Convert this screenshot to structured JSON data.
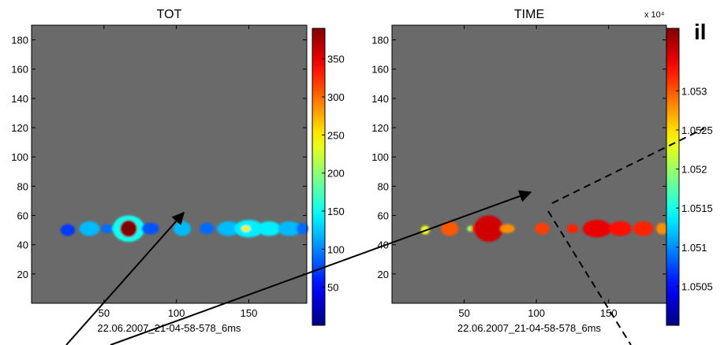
{
  "chart_data": [
    {
      "type": "heatmap",
      "title": "TOT",
      "xlabel": "22.06.2007_21-04-58-578_6ms",
      "xlim": [
        0,
        190
      ],
      "ylim": [
        0,
        190
      ],
      "xticks": [
        50,
        100,
        150
      ],
      "yticks": [
        20,
        40,
        60,
        80,
        100,
        120,
        140,
        160,
        180
      ],
      "background": "#6a6a6a",
      "colorbar": {
        "range": [
          0,
          390
        ],
        "ticks": [
          50,
          100,
          150,
          200,
          250,
          300,
          350
        ],
        "multiplier_label": ""
      },
      "blobs": [
        {
          "x": 25,
          "y": 50,
          "rx": 5,
          "ry": 4,
          "value": 70
        },
        {
          "x": 40,
          "y": 51,
          "rx": 7,
          "ry": 5,
          "value": 120
        },
        {
          "x": 52,
          "y": 51,
          "rx": 4,
          "ry": 3,
          "value": 90
        },
        {
          "x": 59,
          "y": 51,
          "rx": 4,
          "ry": 3,
          "value": 110
        },
        {
          "x": 67,
          "y": 51,
          "rx": 11,
          "ry": 9,
          "value": 150
        },
        {
          "x": 67,
          "y": 51,
          "rx": 6,
          "ry": 6,
          "value": 390
        },
        {
          "x": 82,
          "y": 51,
          "rx": 6,
          "ry": 4,
          "value": 80
        },
        {
          "x": 104,
          "y": 51,
          "rx": 6,
          "ry": 5,
          "value": 120
        },
        {
          "x": 121,
          "y": 51,
          "rx": 5,
          "ry": 4,
          "value": 90
        },
        {
          "x": 136,
          "y": 51,
          "rx": 8,
          "ry": 5,
          "value": 120
        },
        {
          "x": 150,
          "y": 51,
          "rx": 10,
          "ry": 6,
          "value": 140
        },
        {
          "x": 164,
          "y": 51,
          "rx": 8,
          "ry": 5,
          "value": 140
        },
        {
          "x": 178,
          "y": 51,
          "rx": 8,
          "ry": 5,
          "value": 120
        },
        {
          "x": 187,
          "y": 51,
          "rx": 4,
          "ry": 4,
          "value": 90
        },
        {
          "x": 148,
          "y": 51,
          "rx": 3,
          "ry": 2,
          "value": 250
        }
      ]
    },
    {
      "type": "heatmap",
      "title": "TIME",
      "xlabel": "22.06.2007_21-04-58-578_6ms",
      "xlim": [
        0,
        190
      ],
      "ylim": [
        0,
        190
      ],
      "xticks": [
        50,
        100,
        150
      ],
      "yticks": [
        20,
        40,
        60,
        80,
        100,
        120,
        140,
        160,
        180
      ],
      "background": "#6a6a6a",
      "colorbar": {
        "range": [
          10500,
          10538
        ],
        "ticks": [
          1.0505,
          1.051,
          1.0515,
          1.052,
          1.0525,
          1.053
        ],
        "multiplier_label": "x 10⁴"
      },
      "blobs": [
        {
          "x": 23,
          "y": 50,
          "rx": 3,
          "ry": 3,
          "value": 10523
        },
        {
          "x": 40,
          "y": 51,
          "rx": 6,
          "ry": 5,
          "value": 10530
        },
        {
          "x": 54,
          "y": 51,
          "rx": 2,
          "ry": 2,
          "value": 10520
        },
        {
          "x": 59,
          "y": 51,
          "rx": 4,
          "ry": 3,
          "value": 10532
        },
        {
          "x": 67,
          "y": 51,
          "rx": 10,
          "ry": 9,
          "value": 10535
        },
        {
          "x": 80,
          "y": 51,
          "rx": 5,
          "ry": 3,
          "value": 10528
        },
        {
          "x": 104,
          "y": 51,
          "rx": 5,
          "ry": 4,
          "value": 10531
        },
        {
          "x": 125,
          "y": 51,
          "rx": 4,
          "ry": 3,
          "value": 10532
        },
        {
          "x": 142,
          "y": 51,
          "rx": 10,
          "ry": 6,
          "value": 10534
        },
        {
          "x": 158,
          "y": 51,
          "rx": 8,
          "ry": 5,
          "value": 10533
        },
        {
          "x": 174,
          "y": 51,
          "rx": 7,
          "ry": 5,
          "value": 10532
        },
        {
          "x": 187,
          "y": 51,
          "rx": 4,
          "ry": 4,
          "value": 10528
        }
      ]
    }
  ],
  "annotation_glyph": "il",
  "colors": {
    "arrow": "#000000",
    "frame": "#000000"
  }
}
